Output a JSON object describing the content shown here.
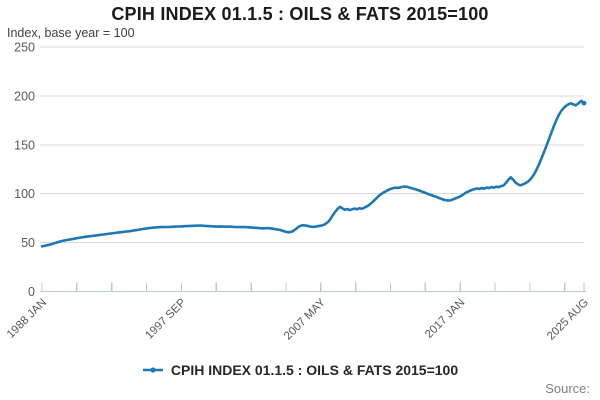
{
  "footer": {
    "source_label": "Source:"
  },
  "colors": {
    "line": "#1f77b4",
    "grid": "#d9d9d9",
    "axis": "#bcc9dc",
    "tick_label": "#595959",
    "title": "#1a1a1a",
    "subtitle": "#404040",
    "source": "#7f7f7f"
  },
  "chart_data": {
    "type": "line",
    "title": "CPIH INDEX 01.1.5 : OILS & FATS 2015=100",
    "subtitle": "Index, base year = 100",
    "x_unit": "months since 1988 JAN",
    "xlim_months": [
      0,
      451
    ],
    "ylim": [
      0,
      250
    ],
    "y_ticks": [
      0,
      50,
      100,
      150,
      200,
      250
    ],
    "minor_tick_interval_months": 29,
    "x_tick_labels": [
      {
        "m": 0,
        "label": "1988 JAN"
      },
      {
        "m": 116,
        "label": "1997 SEP"
      },
      {
        "m": 232,
        "label": "2007 MAY"
      },
      {
        "m": 348,
        "label": "2017 JAN"
      },
      {
        "m": 451,
        "label": "2025 AUG"
      }
    ],
    "grid": "horizontal",
    "legend_position": "bottom",
    "series": [
      {
        "name": "CPIH INDEX 01.1.5 : OILS & FATS 2015=100",
        "points": [
          [
            0,
            46.2
          ],
          [
            3,
            46.9
          ],
          [
            6,
            47.8
          ],
          [
            9,
            48.8
          ],
          [
            12,
            50.0
          ],
          [
            15,
            51.1
          ],
          [
            18,
            52.0
          ],
          [
            21,
            52.7
          ],
          [
            24,
            53.4
          ],
          [
            27,
            54.0
          ],
          [
            30,
            54.7
          ],
          [
            33,
            55.3
          ],
          [
            36,
            55.9
          ],
          [
            39,
            56.4
          ],
          [
            42,
            56.9
          ],
          [
            45,
            57.4
          ],
          [
            48,
            57.9
          ],
          [
            51,
            58.3
          ],
          [
            54,
            58.8
          ],
          [
            57,
            59.3
          ],
          [
            60,
            59.7
          ],
          [
            63,
            60.2
          ],
          [
            66,
            60.6
          ],
          [
            69,
            61.1
          ],
          [
            72,
            61.6
          ],
          [
            75,
            62.1
          ],
          [
            78,
            62.7
          ],
          [
            81,
            63.3
          ],
          [
            84,
            63.9
          ],
          [
            87,
            64.5
          ],
          [
            90,
            65.0
          ],
          [
            93,
            65.3
          ],
          [
            96,
            65.6
          ],
          [
            99,
            65.8
          ],
          [
            102,
            66.0
          ],
          [
            105,
            65.9
          ],
          [
            108,
            66.2
          ],
          [
            111,
            66.4
          ],
          [
            114,
            66.5
          ],
          [
            116,
            66.6
          ],
          [
            120,
            66.9
          ],
          [
            124,
            67.1
          ],
          [
            128,
            67.3
          ],
          [
            132,
            67.5
          ],
          [
            136,
            67.1
          ],
          [
            140,
            66.8
          ],
          [
            144,
            66.4
          ],
          [
            148,
            66.6
          ],
          [
            152,
            66.3
          ],
          [
            156,
            66.5
          ],
          [
            160,
            66.1
          ],
          [
            164,
            65.8
          ],
          [
            168,
            66.0
          ],
          [
            172,
            65.6
          ],
          [
            176,
            65.2
          ],
          [
            180,
            64.8
          ],
          [
            184,
            64.5
          ],
          [
            188,
            64.8
          ],
          [
            192,
            64.2
          ],
          [
            195,
            63.6
          ],
          [
            198,
            63.0
          ],
          [
            202,
            61.4
          ],
          [
            205,
            60.5
          ],
          [
            208,
            61.2
          ],
          [
            211,
            63.6
          ],
          [
            214,
            66.6
          ],
          [
            217,
            67.8
          ],
          [
            220,
            67.3
          ],
          [
            223,
            66.5
          ],
          [
            226,
            66.1
          ],
          [
            229,
            66.7
          ],
          [
            232,
            67.3
          ],
          [
            235,
            68.4
          ],
          [
            238,
            71.0
          ],
          [
            240,
            74.0
          ],
          [
            242,
            78.0
          ],
          [
            244,
            81.5
          ],
          [
            246,
            84.5
          ],
          [
            248,
            86.6
          ],
          [
            250,
            85.0
          ],
          [
            252,
            83.6
          ],
          [
            254,
            84.4
          ],
          [
            256,
            83.2
          ],
          [
            258,
            84.0
          ],
          [
            260,
            84.8
          ],
          [
            262,
            84.0
          ],
          [
            264,
            85.2
          ],
          [
            266,
            84.6
          ],
          [
            268,
            85.6
          ],
          [
            270,
            86.8
          ],
          [
            272,
            88.2
          ],
          [
            274,
            90.4
          ],
          [
            276,
            92.6
          ],
          [
            278,
            95.0
          ],
          [
            280,
            97.4
          ],
          [
            282,
            99.4
          ],
          [
            284,
            101.0
          ],
          [
            286,
            102.4
          ],
          [
            288,
            103.8
          ],
          [
            290,
            104.8
          ],
          [
            292,
            105.6
          ],
          [
            294,
            106.2
          ],
          [
            296,
            105.8
          ],
          [
            298,
            106.4
          ],
          [
            300,
            107.0
          ],
          [
            302,
            107.4
          ],
          [
            304,
            107.0
          ],
          [
            306,
            106.2
          ],
          [
            308,
            105.4
          ],
          [
            310,
            104.8
          ],
          [
            312,
            104.1
          ],
          [
            314,
            103.2
          ],
          [
            316,
            102.3
          ],
          [
            318,
            101.2
          ],
          [
            320,
            100.4
          ],
          [
            322,
            99.4
          ],
          [
            324,
            98.6
          ],
          [
            326,
            97.6
          ],
          [
            328,
            96.8
          ],
          [
            330,
            95.8
          ],
          [
            332,
            94.9
          ],
          [
            334,
            93.9
          ],
          [
            336,
            93.4
          ],
          [
            338,
            93.0
          ],
          [
            340,
            93.3
          ],
          [
            342,
            94.2
          ],
          [
            344,
            95.2
          ],
          [
            346,
            96.1
          ],
          [
            348,
            97.2
          ],
          [
            350,
            98.8
          ],
          [
            352,
            100.4
          ],
          [
            354,
            101.8
          ],
          [
            356,
            103.0
          ],
          [
            358,
            104.0
          ],
          [
            360,
            104.6
          ],
          [
            362,
            105.4
          ],
          [
            364,
            104.8
          ],
          [
            366,
            105.8
          ],
          [
            368,
            105.1
          ],
          [
            370,
            106.3
          ],
          [
            372,
            105.7
          ],
          [
            374,
            106.8
          ],
          [
            376,
            106.1
          ],
          [
            378,
            107.2
          ],
          [
            380,
            106.6
          ],
          [
            382,
            107.8
          ],
          [
            384,
            108.4
          ],
          [
            386,
            111.0
          ],
          [
            388,
            114.2
          ],
          [
            390,
            116.8
          ],
          [
            392,
            114.4
          ],
          [
            394,
            111.4
          ],
          [
            396,
            109.6
          ],
          [
            398,
            108.6
          ],
          [
            400,
            109.4
          ],
          [
            402,
            110.6
          ],
          [
            404,
            112.0
          ],
          [
            406,
            114.2
          ],
          [
            408,
            117.2
          ],
          [
            410,
            121.0
          ],
          [
            412,
            125.8
          ],
          [
            414,
            131.2
          ],
          [
            416,
            137.2
          ],
          [
            418,
            143.4
          ],
          [
            420,
            149.6
          ],
          [
            422,
            156.2
          ],
          [
            424,
            163.0
          ],
          [
            426,
            169.4
          ],
          [
            428,
            175.4
          ],
          [
            430,
            180.6
          ],
          [
            432,
            184.6
          ],
          [
            434,
            187.6
          ],
          [
            436,
            189.8
          ],
          [
            438,
            191.4
          ],
          [
            440,
            192.4
          ],
          [
            442,
            191.4
          ],
          [
            444,
            190.4
          ],
          [
            446,
            192.0
          ],
          [
            448,
            194.2
          ],
          [
            449,
            195.0
          ],
          [
            450,
            193.2
          ],
          [
            451,
            192.6
          ]
        ]
      }
    ]
  }
}
